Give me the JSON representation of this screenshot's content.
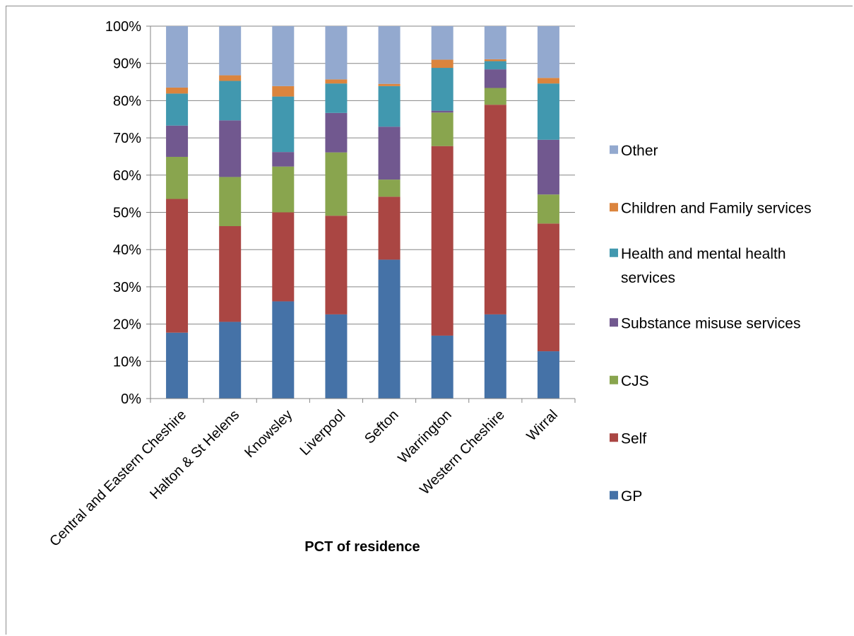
{
  "chart_data": {
    "type": "bar",
    "stacked": true,
    "percent": true,
    "title": "",
    "xlabel": "PCT of residence",
    "ylabel": "",
    "ylim": [
      0,
      100
    ],
    "yticks": [
      "0%",
      "10%",
      "20%",
      "30%",
      "40%",
      "50%",
      "60%",
      "70%",
      "80%",
      "90%",
      "100%"
    ],
    "grid": true,
    "legend_position": "right",
    "categories": [
      "Central and Eastern Cheshire",
      "Halton & St Helens",
      "Knowsley",
      "Liverpool",
      "Sefton",
      "Warrington",
      "Western Cheshire",
      "Wirral"
    ],
    "series": [
      {
        "name": "GP",
        "color": "#4572A7",
        "values": [
          17.7,
          20.6,
          26.1,
          22.6,
          37.3,
          16.9,
          22.6,
          12.7
        ]
      },
      {
        "name": "Self",
        "color": "#AA4643",
        "values": [
          35.9,
          25.7,
          23.9,
          26.5,
          16.9,
          50.9,
          56.3,
          34.3
        ]
      },
      {
        "name": "CJS",
        "color": "#89A54E",
        "values": [
          11.3,
          13.2,
          12.3,
          17.0,
          4.6,
          9.0,
          4.5,
          7.8
        ]
      },
      {
        "name": "Substance misuse services",
        "color": "#71588F",
        "values": [
          8.4,
          15.2,
          3.9,
          10.6,
          14.2,
          0.5,
          5.0,
          14.7
        ]
      },
      {
        "name": "Health and mental health services",
        "color": "#4198AF",
        "values": [
          8.6,
          10.6,
          14.9,
          7.9,
          10.9,
          11.5,
          2.2,
          15.1
        ]
      },
      {
        "name": "Children and Family services",
        "color": "#DB843D",
        "values": [
          1.6,
          1.5,
          2.8,
          1.1,
          0.6,
          2.2,
          0.5,
          1.5
        ]
      },
      {
        "name": "Other",
        "color": "#93A9CF",
        "values": [
          16.5,
          13.2,
          16.1,
          14.3,
          15.5,
          9.0,
          8.9,
          13.9
        ]
      }
    ],
    "legend_order": [
      "Other",
      "Children and Family services",
      "Health and mental health services",
      "Substance misuse services",
      "CJS",
      "Self",
      "GP"
    ]
  }
}
